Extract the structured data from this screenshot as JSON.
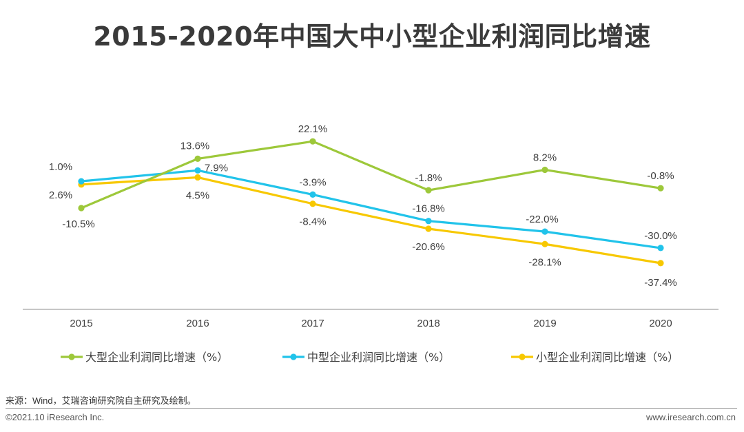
{
  "title": "2015-2020年中国大中小型企业利润同比增速",
  "source": "来源：Wind，艾瑞咨询研究院自主研究及绘制。",
  "copyright": "©2021.10 iResearch Inc.",
  "website": "www.iresearch.com.cn",
  "chart_data": {
    "type": "line",
    "title": "2015-2020年中国大中小型企业利润同比增速",
    "categories": [
      "2015",
      "2016",
      "2017",
      "2018",
      "2019",
      "2020"
    ],
    "ylim": [
      -60,
      40
    ],
    "grid": false,
    "legend_position": "bottom",
    "series": [
      {
        "name": "大型企业利润同比增速（%）",
        "color": "#9dc83a",
        "values": [
          -10.5,
          13.6,
          22.1,
          -1.8,
          8.2,
          -0.8
        ],
        "labels": [
          "-10.5%",
          "13.6%",
          "22.1%",
          "-1.8%",
          "8.2%",
          "-0.8%"
        ]
      },
      {
        "name": "中型企业利润同比增速（%）",
        "color": "#21c3ea",
        "values": [
          2.6,
          7.9,
          -3.9,
          -16.8,
          -22.0,
          -30.0
        ],
        "labels": [
          "2.6%",
          "7.9%",
          "-3.9%",
          "-16.8%",
          "-22.0%",
          "-30.0%"
        ]
      },
      {
        "name": "小型企业利润同比增速（%）",
        "color": "#f7c800",
        "values": [
          1.0,
          4.5,
          -8.4,
          -20.6,
          -28.1,
          -37.4
        ],
        "labels": [
          "1.0%",
          "4.5%",
          "-8.4%",
          "-20.6%",
          "-28.1%",
          "-37.4%"
        ]
      }
    ]
  }
}
